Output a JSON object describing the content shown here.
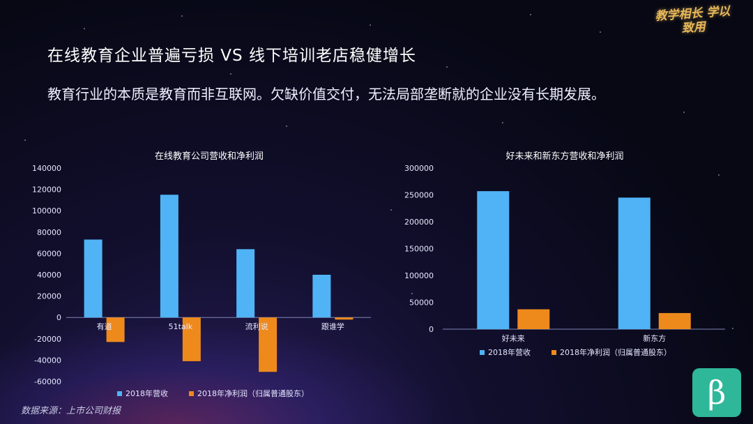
{
  "header": {
    "title": "在线教育企业普遍亏损  VS   线下培训老店稳健增长",
    "subtitle": "教育行业的本质是教育而非互联网。欠缺价值交付，无法局部垄断就的企业没有长期发展。",
    "logo_text": "教学相长 学以致用"
  },
  "footer": {
    "source": "数据来源：上市公司财报",
    "brand_symbol": "β"
  },
  "colors": {
    "revenue": "#4fb3f5",
    "profit": "#ee8a1c"
  },
  "chart_data": [
    {
      "type": "bar",
      "title": "在线教育公司营收和净利润",
      "categories": [
        "有道",
        "51talk",
        "流利说",
        "跟谁学"
      ],
      "series": [
        {
          "name": "2018年营收",
          "values": [
            73000,
            115000,
            64000,
            40000
          ]
        },
        {
          "name": "2018年净利润（归属普通股东）",
          "values": [
            -23000,
            -41000,
            -51000,
            -2000
          ]
        }
      ],
      "ylim": [
        -60000,
        140000
      ],
      "yticks": [
        140000,
        120000,
        100000,
        80000,
        60000,
        40000,
        20000,
        0,
        -20000,
        -40000,
        -60000
      ],
      "legend": "bottom"
    },
    {
      "type": "bar",
      "title": "好未来和新东方营收和净利润",
      "categories": [
        "好未来",
        "新东方"
      ],
      "series": [
        {
          "name": "2018年营收",
          "values": [
            257000,
            245000
          ]
        },
        {
          "name": "2018年净利润（归属普通股东）",
          "values": [
            37000,
            30000
          ]
        }
      ],
      "ylim": [
        0,
        300000
      ],
      "yticks": [
        300000,
        250000,
        200000,
        150000,
        100000,
        50000,
        0
      ],
      "legend": "bottom"
    }
  ]
}
